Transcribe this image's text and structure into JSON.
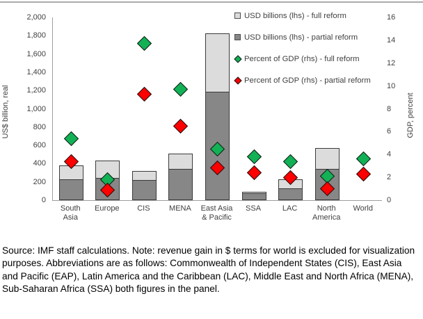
{
  "caption": {
    "text": "Source: IMF staff calculations. Note: revenue gain in $ terms for world is excluded for visualization purposes. Abbreviations are as follows: Commonwealth of Independent States (CIS), East Asia and Pacific (EAP), Latin America and the Caribbean (LAC), Middle East and North Africa (MENA), Sub-Saharan Africa (SSA) both figures in the panel."
  },
  "chart_data": {
    "type": "bar",
    "subtype": "stacked-bar-with-scatter-dual-axis",
    "categories": [
      "South\nAsia",
      "Europe",
      "CIS",
      "MENA",
      "East Asia\n& Pacific",
      "SSA",
      "LAC",
      "North\nAmerica",
      "World"
    ],
    "bar_series": [
      {
        "name": "USD billions (lhs) - full reform",
        "axis": "left",
        "color": "#dcdcdc",
        "values": [
          380,
          435,
          320,
          510,
          1825,
          95,
          225,
          570,
          null
        ]
      },
      {
        "name": "USD billions (lhs) - partial reform",
        "axis": "left",
        "color": "#878787",
        "values": [
          225,
          245,
          220,
          345,
          1185,
          75,
          130,
          340,
          null
        ]
      }
    ],
    "scatter_series": [
      {
        "name": "Percent of GDP (rhs) - full reform",
        "axis": "right",
        "color": "#12b155",
        "marker": "diamond",
        "values": [
          5.4,
          1.8,
          13.7,
          9.7,
          4.5,
          3.8,
          3.4,
          2.1,
          3.6
        ]
      },
      {
        "name": "Percent of GDP (rhs) - partial reform",
        "axis": "right",
        "color": "#fe0000",
        "marker": "diamond",
        "values": [
          3.4,
          0.9,
          9.3,
          6.5,
          2.8,
          2.4,
          2.0,
          1.0,
          2.3
        ]
      }
    ],
    "left_axis": {
      "label": "US$ billion, real",
      "min": 0,
      "max": 2000,
      "ticks": [
        "0",
        "200",
        "400",
        "600",
        "800",
        "1,000",
        "1,200",
        "1,400",
        "1,600",
        "1,800",
        "2,000"
      ]
    },
    "right_axis": {
      "label": "GDP, percent",
      "min": 0,
      "max": 16,
      "ticks": [
        "0",
        "2",
        "4",
        "6",
        "8",
        "10",
        "12",
        "14",
        "16"
      ]
    },
    "legend": {
      "position": "top-right",
      "items": [
        {
          "label": "USD billions (lhs) - full reform",
          "marker": "square",
          "fill": "#dcdcdc"
        },
        {
          "label": "USD billions (lhs) - partial reform",
          "marker": "square",
          "fill": "#878787"
        },
        {
          "label": "Percent of GDP (rhs) - full reform",
          "marker": "diamond",
          "fill": "#12b155"
        },
        {
          "label": "Percent of GDP (rhs) - partial reform",
          "marker": "diamond",
          "fill": "#fe0000"
        }
      ]
    },
    "grid": false,
    "note": "World bars excluded for visualization purposes"
  }
}
